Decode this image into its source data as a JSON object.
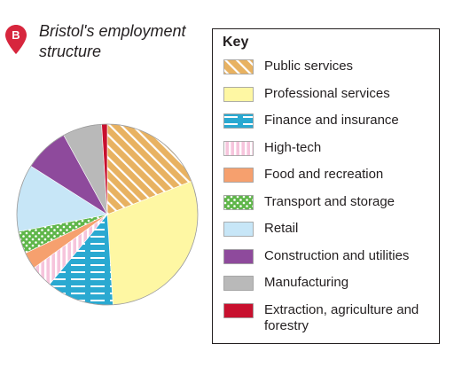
{
  "figure": {
    "label": "B",
    "title_line1": "Bristol's employment",
    "title_line2": "structure",
    "marker_color": "#d7263d"
  },
  "key": {
    "heading": "Key"
  },
  "chart_data": {
    "type": "pie",
    "title": "Bristol's employment structure",
    "legend_placement": "right",
    "start_angle_deg": 0,
    "direction": "clockwise",
    "slices": [
      {
        "label": "Public services",
        "value": 19,
        "color": "#e8b261",
        "pattern": "diagonal-stripes",
        "pattern_color": "#ffffff"
      },
      {
        "label": "Professional services",
        "value": 30,
        "color": "#fef7a3",
        "pattern": "solid"
      },
      {
        "label": "Finance and insurance",
        "value": 12,
        "color": "#2aa9d1",
        "pattern": "horizontal-dashes",
        "pattern_color": "#ffffff"
      },
      {
        "label": "High-tech",
        "value": 4,
        "color": "#f6c4dc",
        "pattern": "vertical-stripes",
        "pattern_color": "#ffffff"
      },
      {
        "label": "Food and recreation",
        "value": 3,
        "color": "#f6a06e",
        "pattern": "solid"
      },
      {
        "label": "Transport and storage",
        "value": 4,
        "color": "#5fb64a",
        "pattern": "dots",
        "pattern_color": "#ffffff"
      },
      {
        "label": "Retail",
        "value": 12,
        "color": "#c7e6f7",
        "pattern": "solid"
      },
      {
        "label": "Construction and utilities",
        "value": 8,
        "color": "#8e4a9c",
        "pattern": "solid"
      },
      {
        "label": "Manufacturing",
        "value": 7,
        "color": "#b9b9b9",
        "pattern": "solid"
      },
      {
        "label": "Extraction, agriculture and forestry",
        "value": 1,
        "color": "#c8102e",
        "pattern": "solid"
      }
    ]
  }
}
